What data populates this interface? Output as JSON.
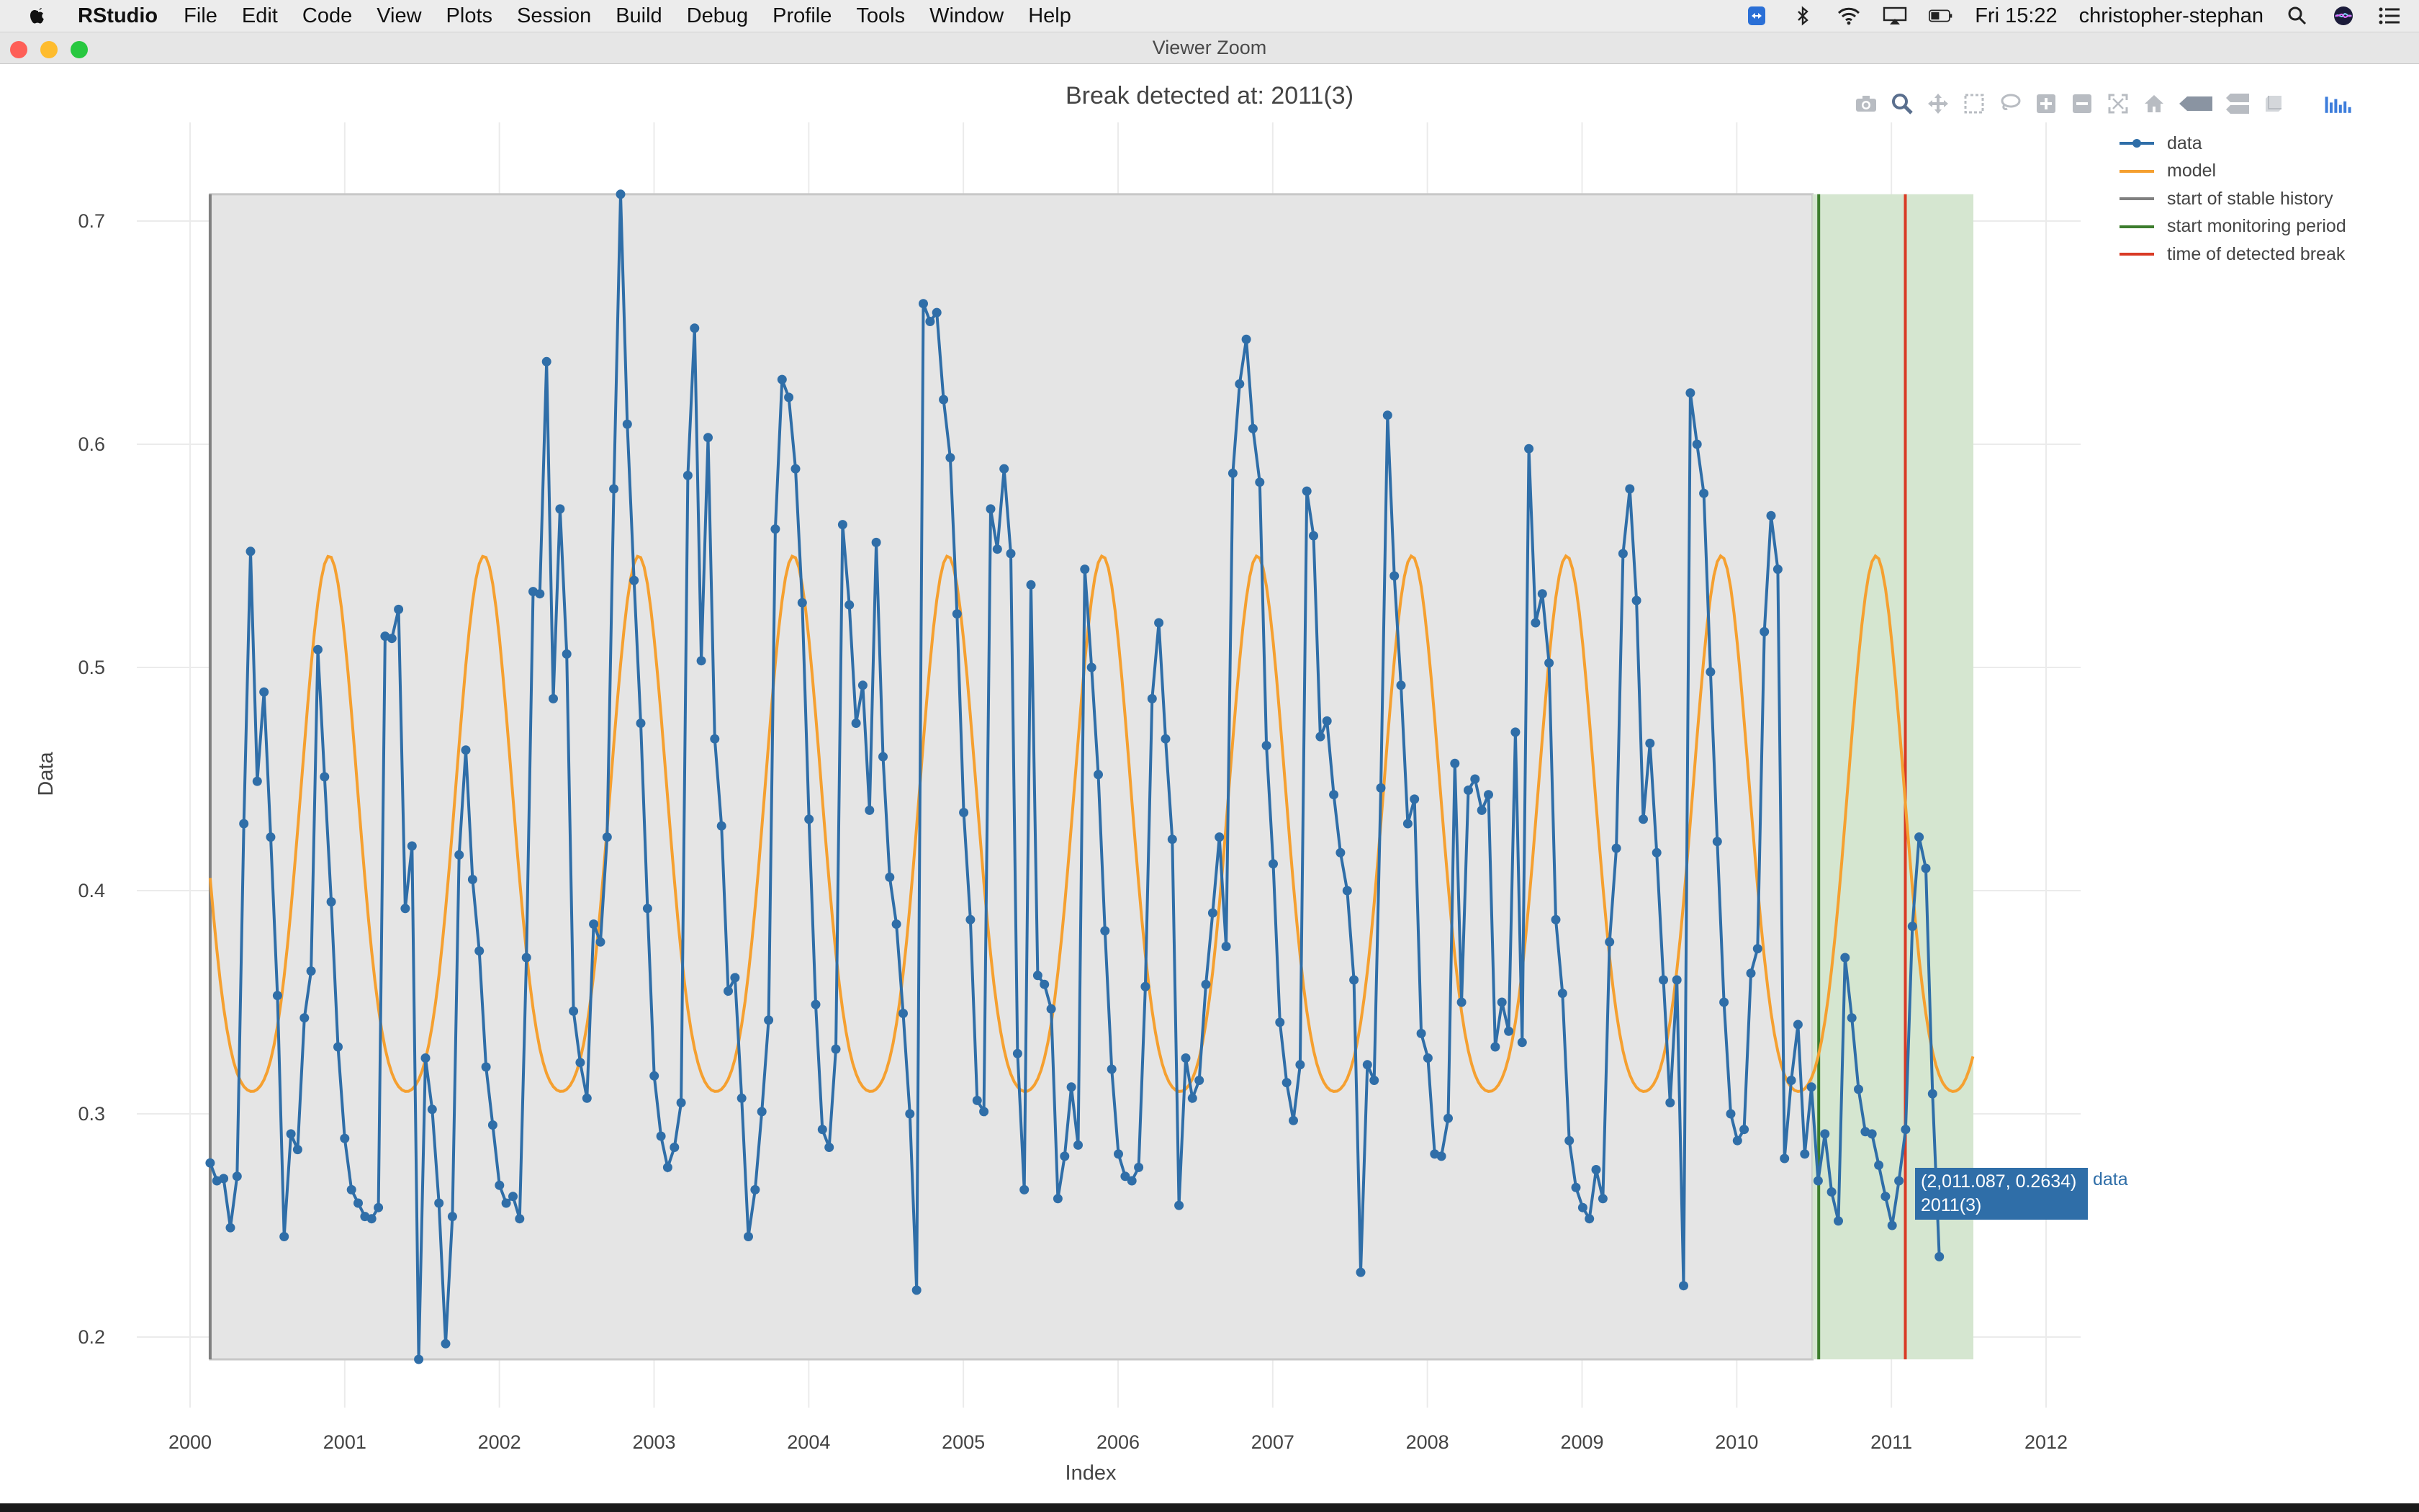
{
  "menubar": {
    "app": "RStudio",
    "items": [
      "File",
      "Edit",
      "Code",
      "View",
      "Plots",
      "Session",
      "Build",
      "Debug",
      "Profile",
      "Tools",
      "Window",
      "Help"
    ],
    "clock": "Fri 15:22",
    "user": "christopher-stephan"
  },
  "window": {
    "title": "Viewer Zoom"
  },
  "modebar": {
    "buttons": [
      "camera-icon",
      "zoom-icon",
      "pan-icon",
      "box-select-icon",
      "lasso-icon",
      "zoom-in-icon",
      "zoom-out-icon",
      "autoscale-icon",
      "reset-axes-icon",
      "closest-hover-icon",
      "compare-hover-icon",
      "spike-lines-icon",
      "plotly-logo-icon"
    ]
  },
  "hover": {
    "value": "(2,011.087, 0.2634)",
    "label": "2011(3)",
    "series": "data"
  },
  "colors": {
    "data": "#2f6ea8",
    "model": "#f5a030",
    "stable_history": "#808080",
    "monitoring": "#3c7d2d",
    "break": "#d93a25",
    "history_region": "#e5e5e5",
    "monitoring_region": "#d5e6d0"
  },
  "chart_data": {
    "type": "line",
    "title": "Break detected at: 2011(3)",
    "xlabel": "Index",
    "ylabel": "Data",
    "xlim": [
      1999.95,
      2012.25
    ],
    "ylim": [
      0.19,
      0.722
    ],
    "x_ticks": [
      2000,
      2001,
      2002,
      2003,
      2004,
      2005,
      2006,
      2007,
      2008,
      2009,
      2010,
      2011,
      2012
    ],
    "y_ticks": [
      0.2,
      0.3,
      0.4,
      0.5,
      0.6,
      0.7
    ],
    "y_tick_labels": [
      "0.2",
      "0.3",
      "0.4",
      "0.5",
      "0.6",
      "0.7"
    ],
    "grid": true,
    "legend_position": "top-right",
    "x_start": 2000.13,
    "x_step": 0.0435,
    "series": [
      {
        "name": "data",
        "mode": "lines+markers",
        "values": [
          0.278,
          0.27,
          0.271,
          0.249,
          0.272,
          0.43,
          0.552,
          0.449,
          0.489,
          0.424,
          0.353,
          0.245,
          0.291,
          0.284,
          0.343,
          0.364,
          0.508,
          0.451,
          0.395,
          0.33,
          0.289,
          0.266,
          0.26,
          0.254,
          0.253,
          0.258,
          0.514,
          0.513,
          0.526,
          0.392,
          0.42,
          0.19,
          0.325,
          0.302,
          0.26,
          0.197,
          0.254,
          0.416,
          0.463,
          0.405,
          0.373,
          0.321,
          0.295,
          0.268,
          0.26,
          0.263,
          0.253,
          0.37,
          0.534,
          0.533,
          0.637,
          0.486,
          0.571,
          0.506,
          0.346,
          0.323,
          0.307,
          0.385,
          0.377,
          0.424,
          0.58,
          0.712,
          0.609,
          0.539,
          0.475,
          0.392,
          0.317,
          0.29,
          0.276,
          0.285,
          0.305,
          0.586,
          0.652,
          0.503,
          0.603,
          0.468,
          0.429,
          0.355,
          0.361,
          0.307,
          0.245,
          0.266,
          0.301,
          0.342,
          0.562,
          0.629,
          0.621,
          0.589,
          0.529,
          0.432,
          0.349,
          0.293,
          0.285,
          0.329,
          0.564,
          0.528,
          0.475,
          0.492,
          0.436,
          0.556,
          0.46,
          0.406,
          0.385,
          0.345,
          0.3,
          0.221,
          0.663,
          0.655,
          0.659,
          0.62,
          0.594,
          0.524,
          0.435,
          0.387,
          0.306,
          0.301,
          0.571,
          0.553,
          0.589,
          0.551,
          0.327,
          0.266,
          0.537,
          0.362,
          0.358,
          0.347,
          0.262,
          0.281,
          0.312,
          0.286,
          0.544,
          0.5,
          0.452,
          0.382,
          0.32,
          0.282,
          0.272,
          0.27,
          0.276,
          0.357,
          0.486,
          0.52,
          0.468,
          0.423,
          0.259,
          0.325,
          0.307,
          0.315,
          0.358,
          0.39,
          0.424,
          0.375,
          0.587,
          0.627,
          0.647,
          0.607,
          0.583,
          0.465,
          0.412,
          0.341,
          0.314,
          0.297,
          0.322,
          0.579,
          0.559,
          0.469,
          0.476,
          0.443,
          0.417,
          0.4,
          0.36,
          0.229,
          0.322,
          0.315,
          0.446,
          0.613,
          0.541,
          0.492,
          0.43,
          0.441,
          0.336,
          0.325,
          0.282,
          0.281,
          0.298,
          0.457,
          0.35,
          0.445,
          0.45,
          0.436,
          0.443,
          0.33,
          0.35,
          0.337,
          0.471,
          0.332,
          0.598,
          0.52,
          0.533,
          0.502,
          0.387,
          0.354,
          0.288,
          0.267,
          0.258,
          0.253,
          0.275,
          0.262,
          0.377,
          0.419,
          0.551,
          0.58,
          0.53,
          0.432,
          0.466,
          0.417,
          0.36,
          0.305,
          0.36,
          0.223,
          0.623,
          0.6,
          0.578,
          0.498,
          0.422,
          0.35,
          0.3,
          0.288,
          0.293,
          0.363,
          0.374,
          0.516,
          0.568,
          0.544,
          0.28,
          0.315,
          0.34,
          0.282,
          0.312,
          0.27,
          0.291,
          0.265,
          0.252,
          0.37,
          0.343,
          0.311,
          0.292,
          0.291,
          0.277,
          0.263,
          0.25,
          0.27,
          0.293,
          0.384,
          0.424,
          0.41,
          0.309,
          0.236
        ]
      },
      {
        "name": "model",
        "mode": "lines",
        "amplitude": 0.12,
        "mean": 0.41,
        "x_end": 2011.53
      },
      {
        "name": "start of stable history",
        "mode": "lines",
        "x": 2000.13
      },
      {
        "name": "start monitoring period",
        "mode": "lines",
        "x": 2010.53
      },
      {
        "name": "time of detected break",
        "mode": "lines",
        "x": 2011.09
      }
    ],
    "regions": [
      {
        "name": "stable history",
        "x": [
          2000.13,
          2010.49
        ]
      },
      {
        "name": "monitoring period",
        "x": [
          2010.49,
          2011.53
        ]
      }
    ]
  }
}
